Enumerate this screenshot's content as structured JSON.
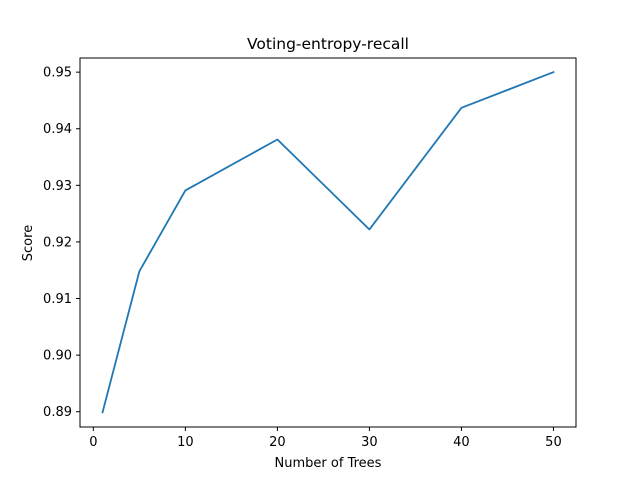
{
  "chart_data": {
    "type": "line",
    "title": "Voting-entropy-recall",
    "xlabel": "Number of Trees",
    "ylabel": "Score",
    "xlim": [
      -1.45,
      52.45
    ],
    "ylim": [
      0.8873,
      0.9525
    ],
    "xticks": [
      0,
      10,
      20,
      30,
      40,
      50
    ],
    "yticks": [
      0.89,
      0.9,
      0.91,
      0.92,
      0.93,
      0.94,
      0.95
    ],
    "ytick_labels": [
      "0.89",
      "0.90",
      "0.91",
      "0.92",
      "0.93",
      "0.94",
      "0.95"
    ],
    "grid": false,
    "series": [
      {
        "color": "#1f77b4",
        "x": [
          1,
          5,
          10,
          20,
          30,
          40,
          50
        ],
        "y": [
          0.8899,
          0.9148,
          0.9291,
          0.9381,
          0.9222,
          0.9437,
          0.95
        ]
      }
    ]
  }
}
